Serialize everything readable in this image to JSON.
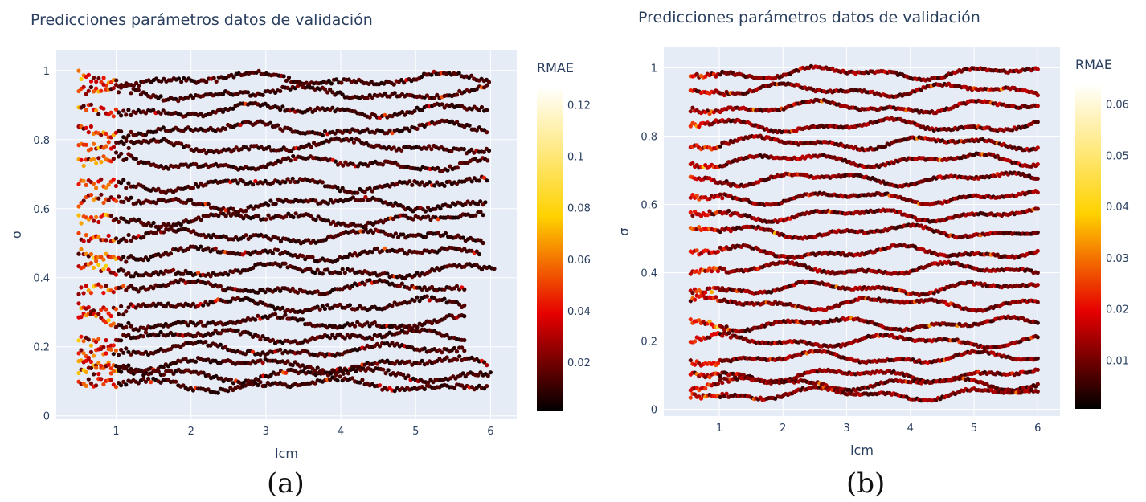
{
  "chart_data": [
    {
      "type": "scatter",
      "title": "Predicciones parámetros datos de validación",
      "xlabel": "lcm",
      "ylabel": "σ",
      "xlim": [
        0.2,
        6.35
      ],
      "ylim": [
        -0.01,
        1.06
      ],
      "xticks": [
        1,
        2,
        3,
        4,
        5,
        6
      ],
      "yticks": [
        0,
        0.2,
        0.4,
        0.6,
        0.8,
        1
      ],
      "ytick_labels": [
        "0",
        "0.2",
        "0.4",
        "0.6",
        "0.8",
        "1"
      ],
      "x_start": 0.5,
      "x_end": [
        5.98,
        5.95,
        5.95,
        5.95,
        5.98,
        5.96,
        5.95,
        5.93,
        5.9,
        5.9,
        5.85,
        6.05,
        5.65,
        5.65,
        5.65,
        5.65,
        5.65,
        5.95,
        6.0,
        5.95
      ],
      "series_levels": [
        0.975,
        0.935,
        0.885,
        0.83,
        0.78,
        0.73,
        0.67,
        0.615,
        0.57,
        0.52,
        0.47,
        0.42,
        0.37,
        0.32,
        0.27,
        0.23,
        0.19,
        0.15,
        0.12,
        0.09
      ],
      "grid": true,
      "colorbar": {
        "title": "RMAE",
        "colorscale": "hot",
        "range": [
          0.001,
          0.127
        ],
        "ticks": [
          0.02,
          0.04,
          0.06,
          0.08,
          0.1,
          0.12
        ],
        "tick_labels": [
          "0.02",
          "0.04",
          "0.06",
          "0.08",
          "0.1",
          "0.12"
        ]
      },
      "sublabel": "(a)"
    },
    {
      "type": "scatter",
      "title": "Predicciones parámetros datos de validación",
      "xlabel": "lcm",
      "ylabel": "σ",
      "xlim": [
        0.13,
        6.35
      ],
      "ylim": [
        -0.02,
        1.06
      ],
      "xticks": [
        1,
        2,
        3,
        4,
        5,
        6
      ],
      "yticks": [
        0,
        0.2,
        0.4,
        0.6,
        0.8,
        1
      ],
      "ytick_labels": [
        "0",
        "0.2",
        "0.4",
        "0.6",
        "0.8",
        "1"
      ],
      "x_start": 0.55,
      "x_end": [
        6.0,
        6.0,
        6.0,
        6.0,
        6.0,
        6.0,
        6.0,
        6.0,
        6.0,
        6.0,
        6.0,
        6.0,
        6.0,
        6.0,
        6.0,
        6.0,
        6.0,
        6.0,
        6.0,
        6.0
      ],
      "series_levels": [
        0.985,
        0.935,
        0.885,
        0.83,
        0.78,
        0.73,
        0.675,
        0.62,
        0.57,
        0.52,
        0.46,
        0.41,
        0.355,
        0.31,
        0.25,
        0.2,
        0.15,
        0.1,
        0.075,
        0.045
      ],
      "grid": true,
      "colorbar": {
        "title": "RMAE",
        "colorscale": "hot",
        "range": [
          0.0005,
          0.064
        ],
        "ticks": [
          0.01,
          0.02,
          0.03,
          0.04,
          0.05,
          0.06
        ],
        "tick_labels": [
          "0.01",
          "0.02",
          "0.03",
          "0.04",
          "0.05",
          "0.06"
        ]
      },
      "sublabel": "(b)"
    }
  ]
}
